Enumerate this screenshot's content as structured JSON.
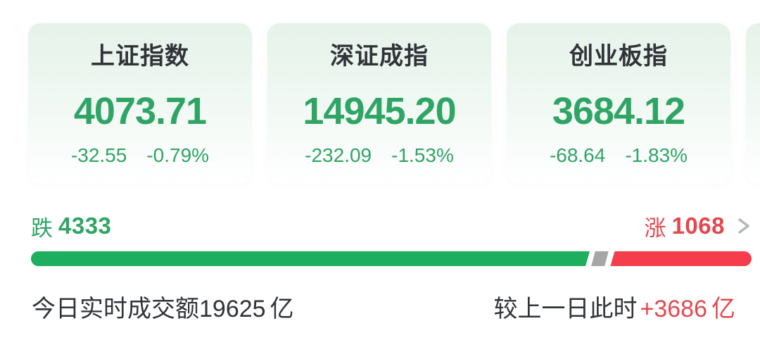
{
  "colors": {
    "text_green": "#2FA565",
    "text_red": "#E4484E",
    "text_dark": "#303338",
    "bar_green": "#1EAE5F",
    "bar_flat_gray": "#A6A6A6",
    "bar_red": "#F53D4C",
    "card_bg_top": "#E5F2EA",
    "chevron_gray": "#B3B6BB"
  },
  "indices": [
    {
      "name": "上证指数",
      "value": "4073.71",
      "change": "-32.55",
      "change_pct": "-0.79%"
    },
    {
      "name": "深证成指",
      "value": "14945.20",
      "change": "-232.09",
      "change_pct": "-1.53%"
    },
    {
      "name": "创业板指",
      "value": "3684.12",
      "change": "-68.64",
      "change_pct": "-1.83%"
    }
  ],
  "breadth": {
    "down_label": "跌",
    "down_count": "4333",
    "up_label": "涨",
    "up_count": "1068",
    "bar": {
      "down_pct": 77.6,
      "flat_pct": 1.9,
      "up_pct": 19.6
    }
  },
  "turnover": {
    "today_label": "今日实时成交额",
    "today_value": "19625",
    "today_unit": "亿",
    "vs_label": "较上一日此时",
    "vs_value": "+3686",
    "vs_unit": "亿"
  }
}
